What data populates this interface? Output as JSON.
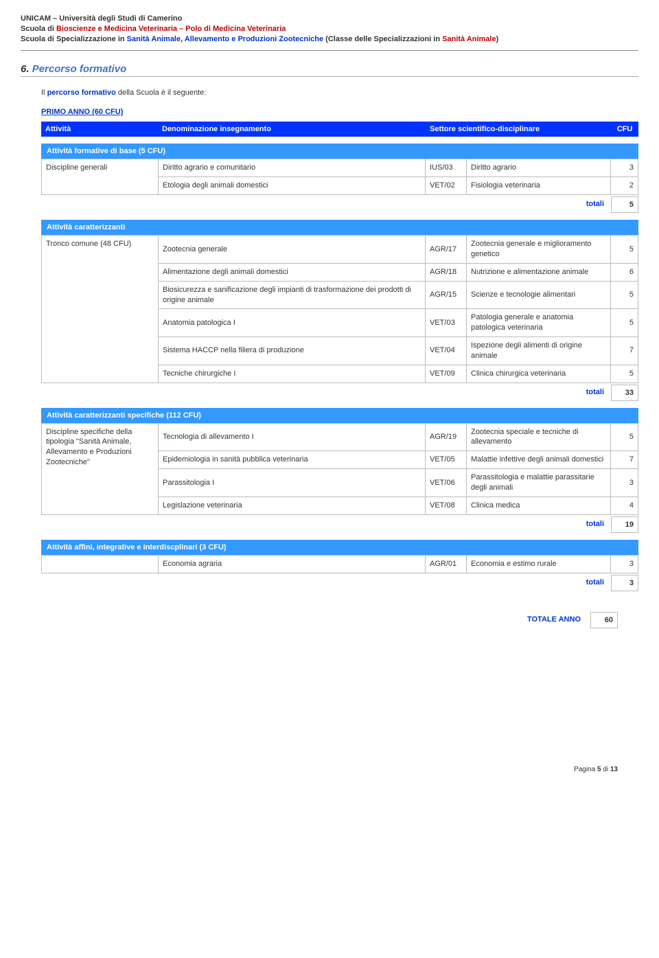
{
  "header": {
    "line1_prefix": "UNICAM – Università degli Studi di Camerino",
    "line2_prefix": "Scuola di ",
    "line2_maroon": "Bioscienze e Medicina Veterinaria – Polo di Medicina Veterinaria",
    "line3_prefix": "Scuola di Specializzazione in ",
    "line3_blue": "Sanità Animale, Allevamento e Produzioni Zootecniche",
    "line3_mid": " (Classe delle Specializzazioni in ",
    "line3_red": "Sanità Animale",
    "line3_suffix": ")"
  },
  "section": {
    "number": "6.",
    "title": "Percorso formativo"
  },
  "intro": {
    "pre": "Il ",
    "link": "percorso formativo",
    "post": " della Scuola è il seguente:"
  },
  "year_label": "PRIMO ANNO (60 CFU)",
  "cols": {
    "activity": "Attività",
    "denom": "Denominazione insegnamento",
    "sector": "Settore scientifico-disciplinare",
    "cfu": "CFU"
  },
  "bands": {
    "base": "Attività formative di base (5 CFU)",
    "caratt": "Attività caratterizzanti",
    "spec": "Attività caratterizzanti specifiche (112 CFU)",
    "affini": "Attività affini, integrative e interdiscplinari (3 CFU)"
  },
  "tables": {
    "base": {
      "activity": "Discipline generali",
      "rows": [
        {
          "den": "Diritto agrario e comunitario",
          "code": "IUS/03",
          "set": "Diritto agrario",
          "cfu": "3"
        },
        {
          "den": "Etologia degli animali domestici",
          "code": "VET/02",
          "set": "Fisiologia veterinaria",
          "cfu": "2"
        }
      ],
      "totali": "5"
    },
    "caratt": {
      "activity": "Tronco comune (48 CFU)",
      "rows": [
        {
          "den": "Zootecnia generale",
          "code": "AGR/17",
          "set": "Zootecnia generale e miglioramento genetico",
          "cfu": "5"
        },
        {
          "den": "Alimentazione degli animali domestici",
          "code": "AGR/18",
          "set": "Nutrizione e alimentazione animale",
          "cfu": "6"
        },
        {
          "den": "Biosicurezza e sanificazione degli impianti di trasformazione dei prodotti di origine animale",
          "code": "AGR/15",
          "set": "Scienze e tecnologie alimentari",
          "cfu": "5"
        },
        {
          "den": "Anatomia patologica I",
          "code": "VET/03",
          "set": "Patologia generale e anatomia patologica veterinaria",
          "cfu": "5"
        },
        {
          "den": "Sistema HACCP nella filiera di produzione",
          "code": "VET/04",
          "set": "Ispezione degli alimenti di origine animale",
          "cfu": "7"
        },
        {
          "den": "Tecniche chirurgiche I",
          "code": "VET/09",
          "set": "Clinica chirurgica veterinaria",
          "cfu": "5"
        }
      ],
      "totali": "33"
    },
    "spec": {
      "activity": "Discipline specifiche della tipologia \"Sanità Animale, Allevamento e Produzioni Zootecniche\"",
      "rows": [
        {
          "den": "Tecnologia di allevamento I",
          "code": "AGR/19",
          "set": "Zootecnia speciale e tecniche di allevamento",
          "cfu": "5"
        },
        {
          "den": "Epidemiologia in sanità pubblica veterinaria",
          "code": "VET/05",
          "set": "Malattie infettive degli animali domestici",
          "cfu": "7"
        },
        {
          "den": "Parassitologia I",
          "code": "VET/06",
          "set": "Parassitologia e malattie parassitarie degli animali",
          "cfu": "3"
        },
        {
          "den": "Legislazione veterinaria",
          "code": "VET/08",
          "set": "Clinica medica",
          "cfu": "4"
        }
      ],
      "totali": "19"
    },
    "affini": {
      "rows": [
        {
          "den": "Economia agraria",
          "code": "AGR/01",
          "set": "Economia e estimo rurale",
          "cfu": "3"
        }
      ],
      "totali": "3"
    }
  },
  "totali_label": "totali",
  "grand": {
    "label": "TOTALE ANNO",
    "value": "60"
  },
  "footer": {
    "prefix": "Pagina ",
    "page": "5",
    "mid": " di ",
    "total": "13"
  },
  "colors": {
    "header_blue": "#0033ff",
    "band_blue": "#3399ff",
    "link_blue": "#0033cc",
    "maroon": "#c00000",
    "section_blue": "#4472c4",
    "border_gray": "#bbbbbb",
    "text": "#333333",
    "background": "#ffffff"
  }
}
